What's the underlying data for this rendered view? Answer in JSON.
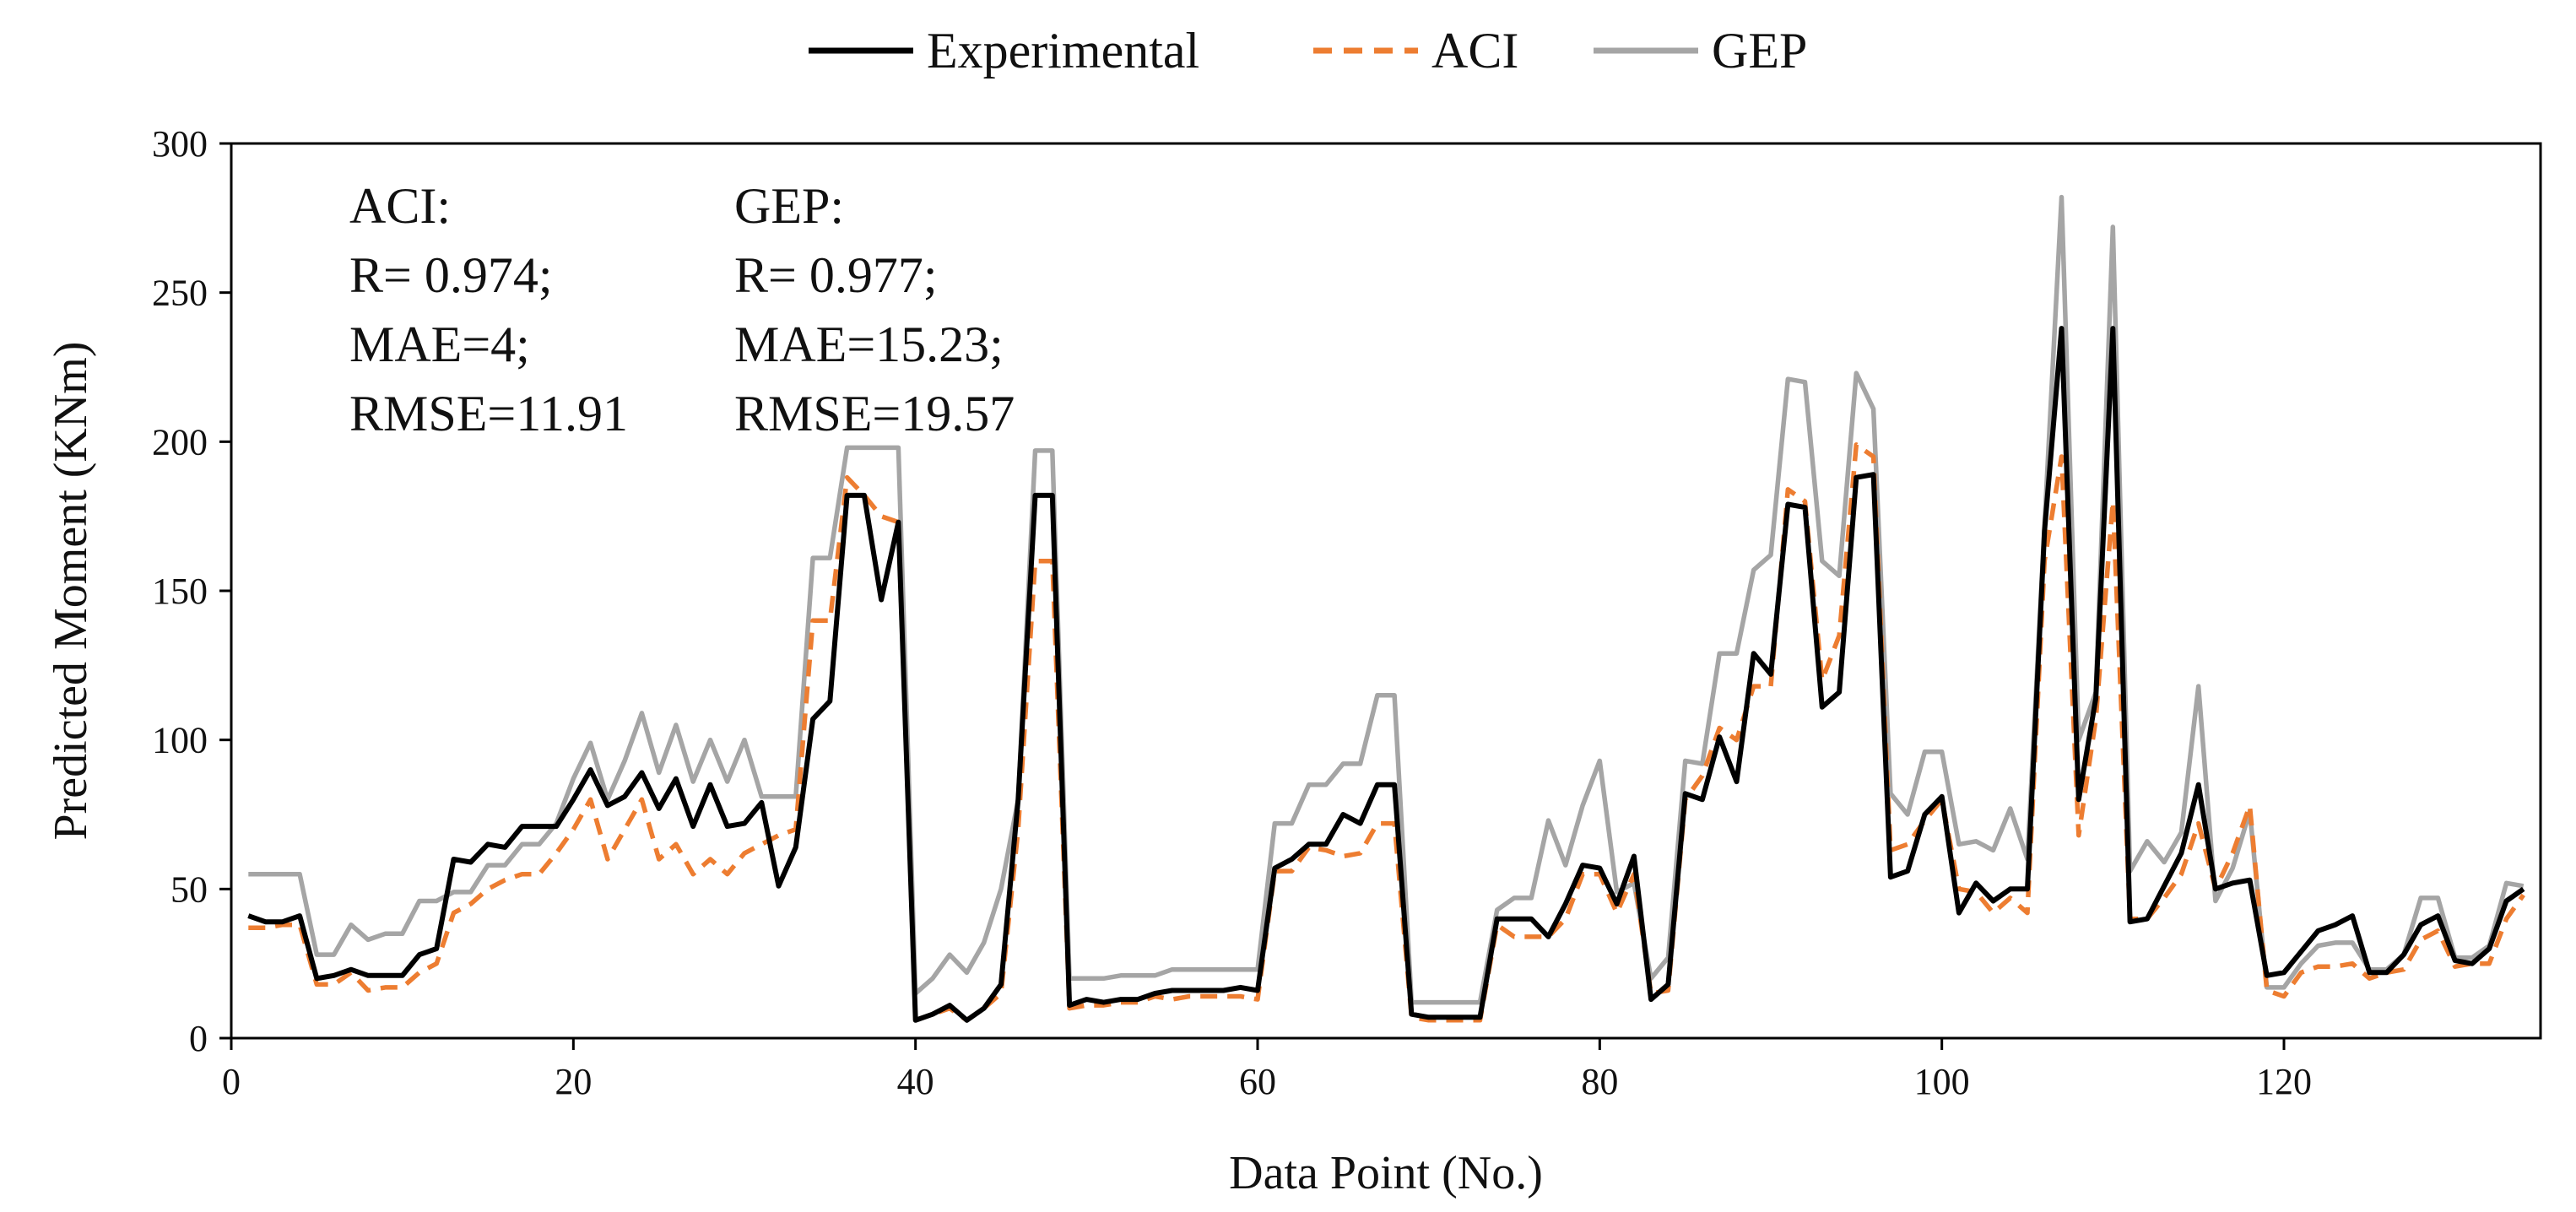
{
  "chart_data": {
    "type": "line",
    "title": "",
    "xlabel": "Data Point (No.)",
    "ylabel": "Predicted Moment (KNm)",
    "xlim": [
      0,
      135
    ],
    "ylim": [
      0,
      300
    ],
    "xticks": [
      0,
      20,
      40,
      60,
      80,
      100,
      120
    ],
    "yticks": [
      0,
      50,
      100,
      150,
      200,
      250,
      300
    ],
    "grid": false,
    "legend_position": "top-center",
    "series": [
      {
        "name": "Experimental",
        "color": "#000000",
        "dash": "solid",
        "x": [
          1,
          2,
          3,
          4,
          5,
          6,
          7,
          8,
          9,
          10,
          11,
          12,
          13,
          14,
          15,
          16,
          17,
          18,
          19,
          20,
          21,
          22,
          23,
          24,
          25,
          26,
          27,
          28,
          29,
          30,
          31,
          32,
          33,
          34,
          35,
          36,
          37,
          38,
          39,
          40,
          41,
          42,
          43,
          44,
          45,
          46,
          47,
          48,
          49,
          50,
          51,
          52,
          53,
          54,
          55,
          56,
          57,
          58,
          59,
          60,
          61,
          62,
          63,
          64,
          65,
          66,
          67,
          68,
          69,
          70,
          71,
          72,
          73,
          74,
          75,
          76,
          77,
          78,
          79,
          80,
          81,
          82,
          83,
          84,
          85,
          86,
          87,
          88,
          89,
          90,
          91,
          92,
          93,
          94,
          95,
          96,
          97,
          98,
          99,
          100,
          101,
          102,
          103,
          104,
          105,
          106,
          107,
          108,
          109,
          110,
          111,
          112,
          113,
          114,
          115,
          116,
          117,
          118,
          119,
          120,
          121,
          122,
          123,
          124,
          125,
          126,
          127,
          128,
          129,
          130,
          131,
          132,
          133,
          134
        ],
        "values": [
          41,
          39,
          39,
          41,
          20,
          21,
          23,
          21,
          21,
          21,
          28,
          30,
          60,
          59,
          65,
          64,
          71,
          71,
          71,
          80,
          90,
          78,
          81,
          89,
          77,
          87,
          71,
          85,
          71,
          72,
          79,
          51,
          64,
          107,
          113,
          182,
          182,
          147,
          173,
          6,
          8,
          11,
          6,
          10,
          18,
          80,
          182,
          182,
          11,
          13,
          12,
          13,
          13,
          15,
          16,
          16,
          16,
          16,
          17,
          16,
          57,
          60,
          65,
          65,
          75,
          72,
          85,
          85,
          8,
          7,
          7,
          7,
          7,
          40,
          40,
          40,
          34,
          45,
          58,
          57,
          45,
          61,
          13,
          18,
          82,
          80,
          101,
          86,
          129,
          122,
          179,
          178,
          111,
          116,
          188,
          189,
          54,
          56,
          75,
          81,
          42,
          52,
          46,
          50,
          50,
          170,
          238,
          80,
          114,
          238,
          39,
          40,
          51,
          62,
          85,
          50,
          52,
          53,
          21,
          22,
          29,
          36,
          38,
          41,
          22,
          22,
          28,
          38,
          41,
          26,
          25,
          30,
          46,
          50
        ]
      },
      {
        "name": "ACI",
        "color": "#ED7D31",
        "dash": "dashed",
        "x": [
          1,
          2,
          3,
          4,
          5,
          6,
          7,
          8,
          9,
          10,
          11,
          12,
          13,
          14,
          15,
          16,
          17,
          18,
          19,
          20,
          21,
          22,
          23,
          24,
          25,
          26,
          27,
          28,
          29,
          30,
          31,
          32,
          33,
          34,
          35,
          36,
          37,
          38,
          39,
          40,
          41,
          42,
          43,
          44,
          45,
          46,
          47,
          48,
          49,
          50,
          51,
          52,
          53,
          54,
          55,
          56,
          57,
          58,
          59,
          60,
          61,
          62,
          63,
          64,
          65,
          66,
          67,
          68,
          69,
          70,
          71,
          72,
          73,
          74,
          75,
          76,
          77,
          78,
          79,
          80,
          81,
          82,
          83,
          84,
          85,
          86,
          87,
          88,
          89,
          90,
          91,
          92,
          93,
          94,
          95,
          96,
          97,
          98,
          99,
          100,
          101,
          102,
          103,
          104,
          105,
          106,
          107,
          108,
          109,
          110,
          111,
          112,
          113,
          114,
          115,
          116,
          117,
          118,
          119,
          120,
          121,
          122,
          123,
          124,
          125,
          126,
          127,
          128,
          129,
          130,
          131,
          132,
          133,
          134
        ],
        "values": [
          37,
          37,
          38,
          38,
          18,
          18,
          22,
          16,
          17,
          17,
          22,
          25,
          42,
          45,
          50,
          53,
          55,
          55,
          62,
          70,
          80,
          60,
          70,
          80,
          60,
          65,
          55,
          60,
          55,
          62,
          65,
          68,
          70,
          140,
          140,
          188,
          182,
          175,
          173,
          6,
          8,
          10,
          6,
          10,
          15,
          70,
          160,
          160,
          10,
          11,
          11,
          12,
          12,
          14,
          13,
          14,
          14,
          14,
          14,
          13,
          56,
          56,
          64,
          63,
          61,
          62,
          72,
          72,
          7,
          6,
          6,
          6,
          6,
          38,
          34,
          34,
          34,
          40,
          55,
          55,
          42,
          55,
          15,
          16,
          80,
          88,
          104,
          100,
          118,
          118,
          184,
          180,
          120,
          135,
          199,
          195,
          63,
          65,
          73,
          80,
          50,
          49,
          42,
          47,
          42,
          160,
          195,
          68,
          107,
          180,
          40,
          40,
          47,
          55,
          72,
          50,
          62,
          78,
          16,
          14,
          22,
          24,
          24,
          25,
          20,
          22,
          23,
          33,
          36,
          24,
          25,
          25,
          40,
          48
        ]
      },
      {
        "name": "GEP",
        "color": "#A5A5A5",
        "dash": "solid",
        "x": [
          1,
          2,
          3,
          4,
          5,
          6,
          7,
          8,
          9,
          10,
          11,
          12,
          13,
          14,
          15,
          16,
          17,
          18,
          19,
          20,
          21,
          22,
          23,
          24,
          25,
          26,
          27,
          28,
          29,
          30,
          31,
          32,
          33,
          34,
          35,
          36,
          37,
          38,
          39,
          40,
          41,
          42,
          43,
          44,
          45,
          46,
          47,
          48,
          49,
          50,
          51,
          52,
          53,
          54,
          55,
          56,
          57,
          58,
          59,
          60,
          61,
          62,
          63,
          64,
          65,
          66,
          67,
          68,
          69,
          70,
          71,
          72,
          73,
          74,
          75,
          76,
          77,
          78,
          79,
          80,
          81,
          82,
          83,
          84,
          85,
          86,
          87,
          88,
          89,
          90,
          91,
          92,
          93,
          94,
          95,
          96,
          97,
          98,
          99,
          100,
          101,
          102,
          103,
          104,
          105,
          106,
          107,
          108,
          109,
          110,
          111,
          112,
          113,
          114,
          115,
          116,
          117,
          118,
          119,
          120,
          121,
          122,
          123,
          124,
          125,
          126,
          127,
          128,
          129,
          130,
          131,
          132,
          133,
          134
        ],
        "values": [
          55,
          55,
          55,
          55,
          28,
          28,
          38,
          33,
          35,
          35,
          46,
          46,
          49,
          49,
          58,
          58,
          65,
          65,
          72,
          87,
          99,
          80,
          93,
          109,
          89,
          105,
          86,
          100,
          86,
          100,
          81,
          81,
          81,
          161,
          161,
          198,
          198,
          198,
          198,
          15,
          20,
          28,
          22,
          32,
          50,
          80,
          197,
          197,
          20,
          20,
          20,
          21,
          21,
          21,
          23,
          23,
          23,
          23,
          23,
          23,
          72,
          72,
          85,
          85,
          92,
          92,
          115,
          115,
          12,
          12,
          12,
          12,
          12,
          43,
          47,
          47,
          73,
          58,
          78,
          93,
          49,
          52,
          20,
          27,
          93,
          92,
          129,
          129,
          157,
          162,
          221,
          220,
          160,
          155,
          223,
          211,
          82,
          75,
          96,
          96,
          65,
          66,
          63,
          77,
          60,
          172,
          282,
          100,
          116,
          272,
          56,
          66,
          59,
          69,
          118,
          46,
          57,
          76,
          17,
          17,
          25,
          31,
          32,
          32,
          23,
          23,
          28,
          47,
          47,
          27,
          27,
          31,
          52,
          51
        ]
      }
    ],
    "annotations": [
      {
        "id": "aci",
        "lines": [
          "ACI:",
          "R= 0.974;",
          "MAE=4;",
          "RMSE=11.91"
        ]
      },
      {
        "id": "gep",
        "lines": [
          "GEP:",
          "R= 0.977;",
          "MAE=15.23;",
          "RMSE=19.57"
        ]
      }
    ]
  }
}
